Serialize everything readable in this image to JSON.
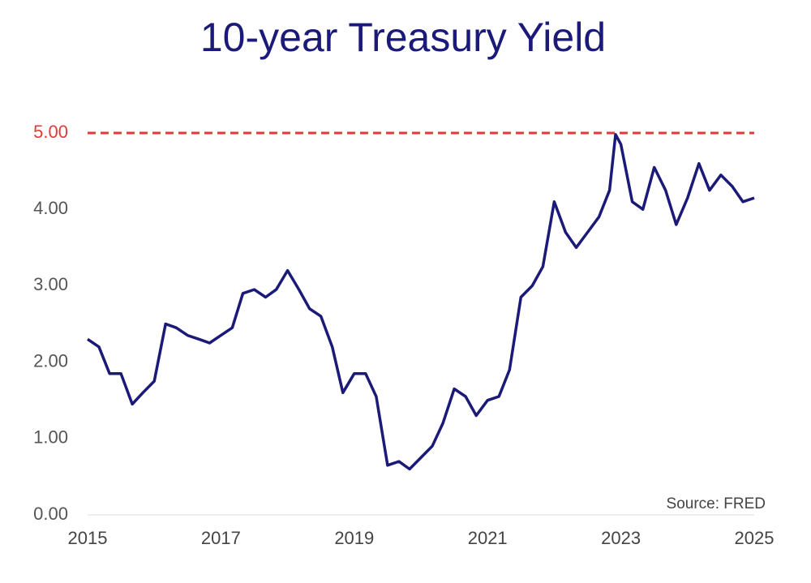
{
  "chart_data": {
    "type": "line",
    "title": "10-year Treasury Yield",
    "source": "Source: FRED",
    "x": [
      2015.0,
      2015.17,
      2015.33,
      2015.5,
      2015.67,
      2015.83,
      2016.0,
      2016.17,
      2016.33,
      2016.5,
      2016.67,
      2016.83,
      2017.0,
      2017.17,
      2017.33,
      2017.5,
      2017.67,
      2017.83,
      2018.0,
      2018.17,
      2018.33,
      2018.5,
      2018.67,
      2018.83,
      2019.0,
      2019.17,
      2019.33,
      2019.5,
      2019.67,
      2019.83,
      2020.0,
      2020.17,
      2020.33,
      2020.5,
      2020.67,
      2020.83,
      2021.0,
      2021.17,
      2021.33,
      2021.5,
      2021.67,
      2021.83,
      2022.0,
      2022.17,
      2022.33,
      2022.5,
      2022.67,
      2022.83,
      2022.92,
      2023.0,
      2023.17,
      2023.33,
      2023.5,
      2023.67,
      2023.83,
      2024.0,
      2024.17,
      2024.33,
      2024.5,
      2024.67,
      2024.83,
      2025.0
    ],
    "series": [
      {
        "name": "10-year Treasury Yield",
        "color": "#1b1a78",
        "values": [
          2.3,
          2.2,
          1.85,
          1.85,
          1.45,
          1.6,
          1.75,
          2.5,
          2.45,
          2.35,
          2.3,
          2.25,
          2.35,
          2.45,
          2.9,
          2.95,
          2.85,
          2.95,
          3.2,
          2.95,
          2.7,
          2.6,
          2.2,
          1.6,
          1.85,
          1.85,
          1.55,
          0.65,
          0.7,
          0.6,
          0.75,
          0.9,
          1.2,
          1.65,
          1.55,
          1.3,
          1.5,
          1.55,
          1.9,
          2.85,
          3.0,
          3.25,
          4.1,
          3.7,
          3.5,
          3.7,
          3.9,
          4.25,
          4.98,
          4.85,
          4.1,
          4.0,
          4.55,
          4.25,
          3.8,
          4.15,
          4.6,
          4.25,
          4.45,
          4.3,
          4.1,
          4.15
        ]
      }
    ],
    "xlim": [
      2015,
      2025
    ],
    "xticks": [
      2015,
      2017,
      2019,
      2021,
      2023,
      2025
    ],
    "ylim": [
      0,
      5
    ],
    "yticks": [
      {
        "value": 0,
        "label": "0.00"
      },
      {
        "value": 1,
        "label": "1.00"
      },
      {
        "value": 2,
        "label": "2.00"
      },
      {
        "value": 3,
        "label": "3.00"
      },
      {
        "value": 4,
        "label": "4.00"
      }
    ],
    "reference_line": {
      "value": 5,
      "label": "5.00",
      "color": "#e03a3a"
    },
    "grid": false
  }
}
